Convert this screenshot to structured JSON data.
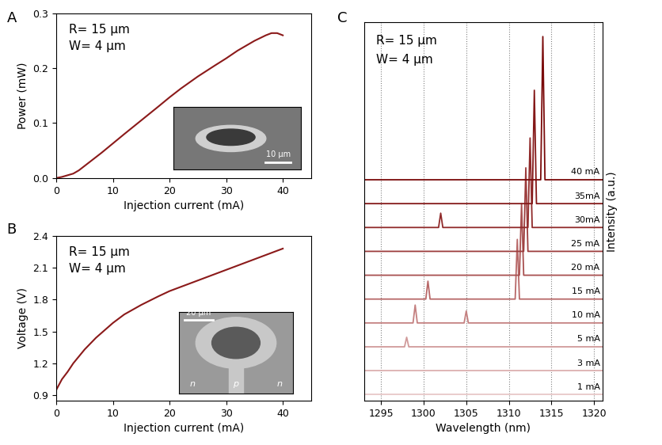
{
  "chart_data": [
    {
      "panel": "A",
      "type": "line",
      "annotations": [
        "R= 15 μm",
        "W= 4 μm"
      ],
      "x_label": "Injection current (mA)",
      "y_label": "Power (mW)",
      "x": [
        0,
        1,
        2,
        3,
        4,
        5,
        6,
        8,
        10,
        12,
        15,
        18,
        20,
        22,
        25,
        28,
        30,
        32,
        35,
        37,
        38,
        39,
        40
      ],
      "series": [
        {
          "color": "#8b1a1a",
          "values": [
            0,
            0.002,
            0.005,
            0.008,
            0.014,
            0.022,
            0.03,
            0.046,
            0.063,
            0.08,
            0.105,
            0.13,
            0.147,
            0.163,
            0.185,
            0.205,
            0.218,
            0.232,
            0.25,
            0.26,
            0.264,
            0.264,
            0.26
          ]
        }
      ],
      "xlim": [
        0,
        45
      ],
      "xticks": [
        0,
        10,
        20,
        30,
        40
      ],
      "ylim": [
        0,
        0.3
      ],
      "yticks": [
        0.0,
        0.1,
        0.2,
        0.3
      ],
      "inset": {
        "scale_bar": "10 μm"
      }
    },
    {
      "panel": "B",
      "type": "line",
      "annotations": [
        "R= 15 μm",
        "W= 4 μm"
      ],
      "x_label": "Injection current (mA)",
      "y_label": "Voltage (V)",
      "x": [
        0,
        0.5,
        1,
        2,
        3,
        5,
        7,
        10,
        12,
        15,
        18,
        20,
        22,
        25,
        28,
        30,
        32,
        35,
        38,
        40
      ],
      "series": [
        {
          "color": "#8b1a1a",
          "values": [
            0.95,
            1.0,
            1.05,
            1.12,
            1.2,
            1.33,
            1.44,
            1.58,
            1.66,
            1.75,
            1.83,
            1.88,
            1.92,
            1.98,
            2.04,
            2.08,
            2.12,
            2.18,
            2.24,
            2.28
          ]
        }
      ],
      "xlim": [
        0,
        45
      ],
      "xticks": [
        0,
        10,
        20,
        30,
        40
      ],
      "ylim": [
        0.85,
        2.4
      ],
      "yticks": [
        0.9,
        1.2,
        1.5,
        1.8,
        2.1,
        2.4
      ],
      "inset": {
        "scale_bar": "20 μm",
        "labels": [
          "n",
          "p",
          "n"
        ]
      }
    },
    {
      "panel": "C",
      "type": "line",
      "annotations": [
        "R= 15 μm",
        "W= 4 μm"
      ],
      "x_label": "Wavelength (nm)",
      "y_label": "Intensity (a.u.)",
      "xlim": [
        1293,
        1321
      ],
      "xticks": [
        1295,
        1300,
        1305,
        1310,
        1315,
        1320
      ],
      "tick_labels": "x",
      "grid": true,
      "series": [
        {
          "name": "1 mA",
          "color": "#e8c8c8",
          "x": [
            1293,
            1321
          ],
          "values": [
            0,
            0
          ]
        },
        {
          "name": "3 mA",
          "color": "#dcb0b0",
          "x": [
            1293,
            1321
          ],
          "values": [
            0,
            0
          ]
        },
        {
          "name": "5 mA",
          "color": "#d09a9a",
          "x": [
            1293,
            1297.75,
            1298,
            1298.25,
            1321
          ],
          "values": [
            0,
            0,
            8,
            0,
            0
          ]
        },
        {
          "name": "10 mA",
          "color": "#c48080",
          "x": [
            1293,
            1298.75,
            1299,
            1299.25,
            1304.75,
            1305,
            1305.25,
            1321
          ],
          "values": [
            0,
            0,
            15,
            0,
            0,
            10,
            0,
            0
          ]
        },
        {
          "name": "15 mA",
          "color": "#b86868",
          "x": [
            1293,
            1300.25,
            1300.5,
            1300.75,
            1310.75,
            1311,
            1311.25,
            1321
          ],
          "values": [
            0,
            0,
            15,
            0,
            0,
            50,
            0,
            0
          ]
        },
        {
          "name": "20 mA",
          "color": "#a85050",
          "x": [
            1293,
            1311.25,
            1311.5,
            1311.75,
            1321
          ],
          "values": [
            0,
            0,
            60,
            0,
            0
          ]
        },
        {
          "name": "25 mA",
          "color": "#9c3c3c",
          "x": [
            1293,
            1311.75,
            1312,
            1312.25,
            1321
          ],
          "values": [
            0,
            0,
            70,
            0,
            0
          ]
        },
        {
          "name": "30mA",
          "color": "#902a2a",
          "x": [
            1293,
            1301.75,
            1302,
            1302.25,
            1312.25,
            1312.5,
            1312.75,
            1321
          ],
          "values": [
            0,
            0,
            12,
            0,
            0,
            75,
            0,
            0
          ]
        },
        {
          "name": "35mA",
          "color": "#841818",
          "x": [
            1293,
            1312.75,
            1313,
            1313.25,
            1321
          ],
          "values": [
            0,
            0,
            95,
            0,
            0
          ]
        },
        {
          "name": "40 mA",
          "color": "#7a0a0a",
          "x": [
            1293,
            1313.75,
            1314,
            1314.25,
            1321
          ],
          "values": [
            0,
            0,
            120,
            0,
            0
          ]
        }
      ]
    }
  ]
}
